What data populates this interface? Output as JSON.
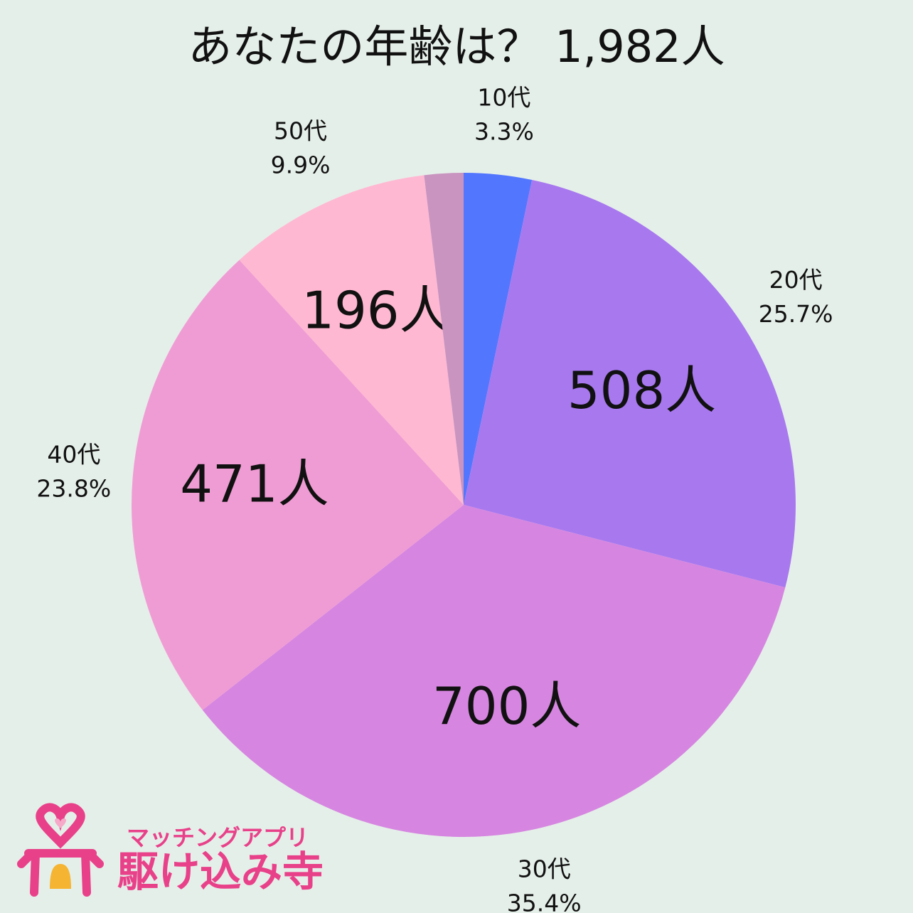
{
  "chart_data": {
    "type": "pie",
    "title": "あなたの年齢は？ 1,982人",
    "categories": [
      "10代",
      "20代",
      "30代",
      "40代",
      "50代",
      null
    ],
    "values": [
      3.3,
      25.7,
      35.4,
      23.8,
      9.9,
      1.9
    ],
    "value_labels": [
      "3.3%",
      "25.7%",
      "35.4%",
      "23.8%",
      "9.9%",
      null
    ],
    "counts": [
      null,
      508,
      700,
      471,
      196,
      null
    ],
    "count_labels": [
      null,
      "508人",
      "700人",
      "471人",
      "196人",
      null
    ],
    "colors": [
      "#5376ff",
      "#a878ef",
      "#d686e0",
      "#f09cd4",
      "#ffb8d2",
      "#c994c0"
    ]
  },
  "logo": {
    "tagline": "マッチングアプリ",
    "name": "駆け込み寺"
  }
}
